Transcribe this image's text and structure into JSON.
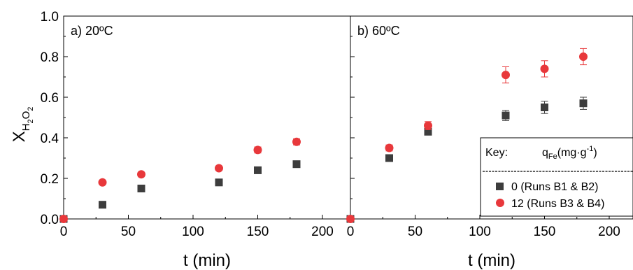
{
  "chart_data": {
    "type": "scatter",
    "ylabel": "X",
    "ylabel_sub": "H",
    "ylabel_sub2": "2",
    "ylabel_sub3": "O",
    "ylabel_sub4": "2",
    "ylim": [
      0,
      1.0
    ],
    "yticks": [
      "0.0",
      "0.2",
      "0.4",
      "0.6",
      "0.8",
      "1.0"
    ],
    "series_colors": [
      "#3d3d3d",
      "#e8383b"
    ],
    "panels": [
      {
        "label": "a) 20ºC",
        "xlabel": "t (min)",
        "xlim": [
          0,
          210
        ],
        "xticks": [
          "0",
          "50",
          "100",
          "150",
          "200"
        ],
        "series": [
          {
            "marker": "square",
            "points": [
              {
                "x": 0,
                "y": 0.0,
                "err": 0
              },
              {
                "x": 30,
                "y": 0.07,
                "err": 0
              },
              {
                "x": 60,
                "y": 0.15,
                "err": 0
              },
              {
                "x": 120,
                "y": 0.18,
                "err": 0
              },
              {
                "x": 150,
                "y": 0.24,
                "err": 0
              },
              {
                "x": 180,
                "y": 0.27,
                "err": 0
              }
            ]
          },
          {
            "marker": "circle",
            "points": [
              {
                "x": 0,
                "y": 0.0,
                "err": 0
              },
              {
                "x": 30,
                "y": 0.18,
                "err": 0
              },
              {
                "x": 60,
                "y": 0.22,
                "err": 0
              },
              {
                "x": 120,
                "y": 0.25,
                "err": 0
              },
              {
                "x": 150,
                "y": 0.34,
                "err": 0.015
              },
              {
                "x": 180,
                "y": 0.38,
                "err": 0.015
              }
            ]
          }
        ]
      },
      {
        "label": "b) 60ºC",
        "xlabel": "t (min)",
        "xlim": [
          0,
          210
        ],
        "xticks": [
          "0",
          "50",
          "100",
          "150",
          "200"
        ],
        "series": [
          {
            "marker": "square",
            "points": [
              {
                "x": 0,
                "y": 0.0,
                "err": 0
              },
              {
                "x": 30,
                "y": 0.3,
                "err": 0
              },
              {
                "x": 60,
                "y": 0.43,
                "err": 0
              },
              {
                "x": 120,
                "y": 0.51,
                "err": 0.025
              },
              {
                "x": 150,
                "y": 0.55,
                "err": 0.03
              },
              {
                "x": 180,
                "y": 0.57,
                "err": 0.03
              }
            ]
          },
          {
            "marker": "circle",
            "points": [
              {
                "x": 0,
                "y": 0.0,
                "err": 0
              },
              {
                "x": 30,
                "y": 0.35,
                "err": 0.015
              },
              {
                "x": 60,
                "y": 0.46,
                "err": 0.02
              },
              {
                "x": 120,
                "y": 0.71,
                "err": 0.04
              },
              {
                "x": 150,
                "y": 0.74,
                "err": 0.04
              },
              {
                "x": 180,
                "y": 0.8,
                "err": 0.04
              }
            ]
          }
        ]
      }
    ],
    "legend": {
      "placement": "bottom-right of panel b",
      "key_label": "Key:",
      "header_q": "q",
      "header_q_sub": "Fe",
      "header_unit": "(mg·g",
      "header_unit_sup": "-1",
      "header_close": ")",
      "entries": [
        "0  (Runs B1 & B2)",
        "12 (Runs B3 & B4)"
      ]
    }
  }
}
